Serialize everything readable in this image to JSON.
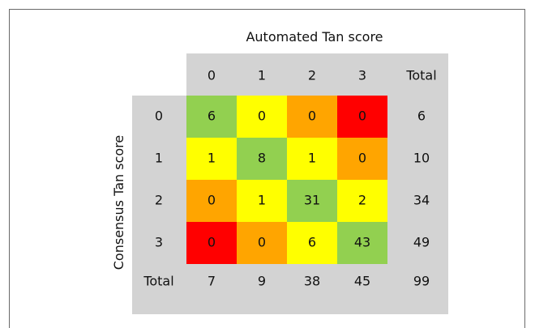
{
  "chart_data": {
    "type": "heatmap",
    "title": "",
    "xlabel": "Automated Tan score",
    "ylabel": "Consensus Tan score",
    "x_categories": [
      "0",
      "1",
      "2",
      "3"
    ],
    "y_categories": [
      "0",
      "1",
      "2",
      "3"
    ],
    "total_label": "Total",
    "values": [
      [
        6,
        0,
        0,
        0
      ],
      [
        1,
        8,
        1,
        0
      ],
      [
        0,
        1,
        31,
        2
      ],
      [
        0,
        0,
        6,
        43
      ]
    ],
    "row_totals": [
      6,
      10,
      34,
      49
    ],
    "column_totals": [
      7,
      9,
      38,
      45
    ],
    "grand_total": 99,
    "colors": {
      "agreement": "#92d050",
      "off_by_one": "#ffff00",
      "off_by_two": "#ffa500",
      "off_by_three": "#ff0000",
      "header_background": "#d3d3d3"
    }
  }
}
